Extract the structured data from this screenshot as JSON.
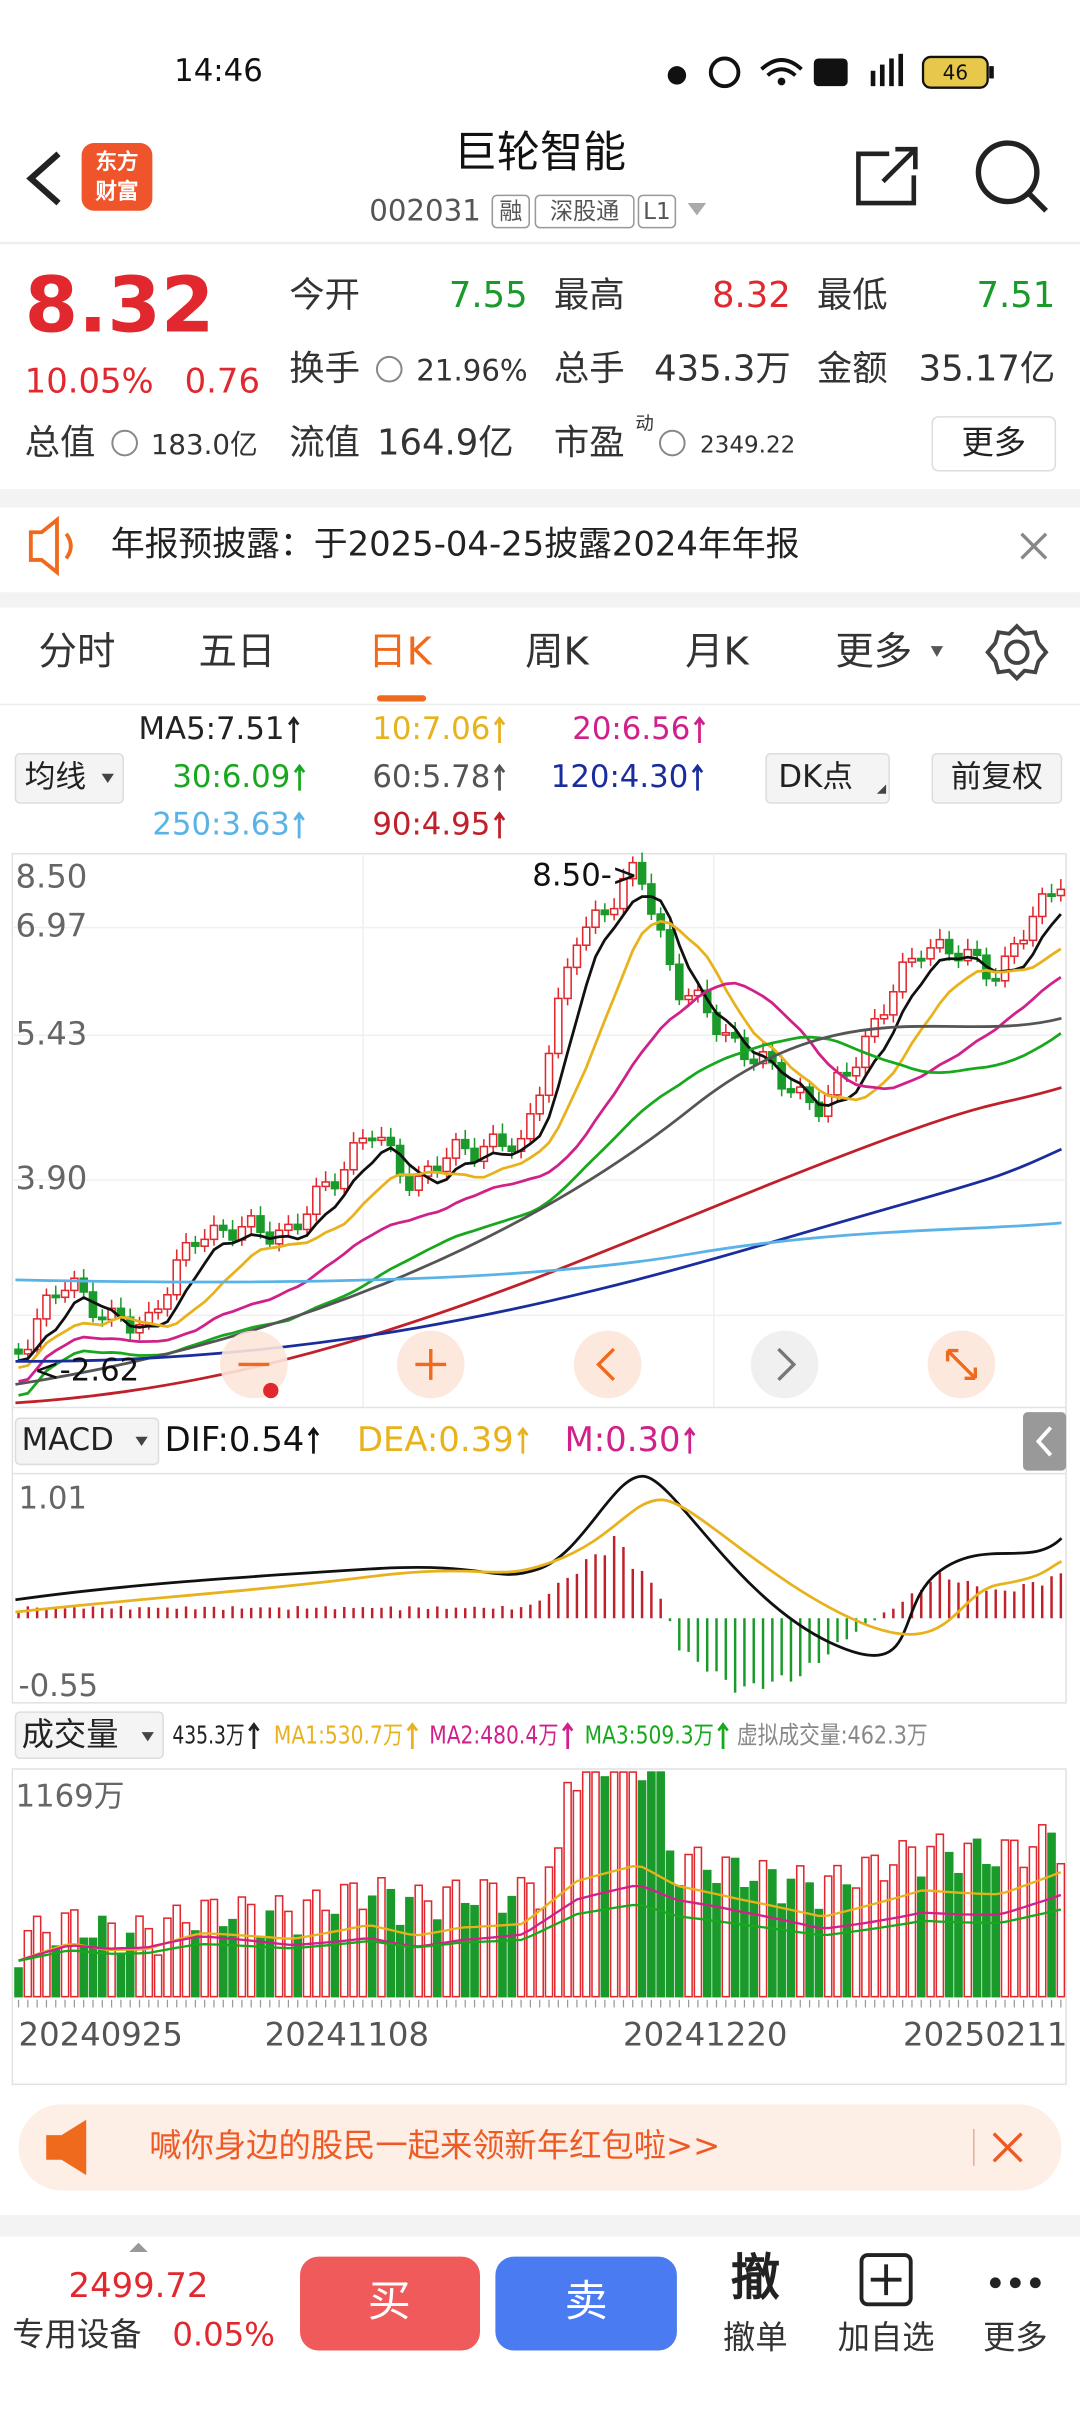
{
  "status_bar": {
    "time": "14:46",
    "battery": "46"
  },
  "header": {
    "logo": [
      "东方",
      "财富"
    ],
    "title": "巨轮智能",
    "code": "002031",
    "tags": [
      "融",
      "深股通",
      "L1"
    ]
  },
  "quote": {
    "price": "8.32",
    "change_pct": "10.05%",
    "change": "0.76",
    "open": {
      "label": "今开",
      "value": "7.55"
    },
    "high": {
      "label": "最高",
      "value": "8.32"
    },
    "low": {
      "label": "最低",
      "value": "7.51"
    },
    "turnover": {
      "label": "换手",
      "value": "21.96%"
    },
    "volume": {
      "label": "总手",
      "value": "435.3万"
    },
    "amount": {
      "label": "金额",
      "value": "35.17亿"
    },
    "market_cap": {
      "label": "总值",
      "value": "183.0亿"
    },
    "float_cap": {
      "label": "流值",
      "value": "164.9亿"
    },
    "pe": {
      "label": "市盈",
      "sup": "动",
      "value": "2349.22"
    },
    "more": "更多"
  },
  "notice": "年报预披露：于2025-04-25披露2024年年报",
  "tabs": [
    "分时",
    "五日",
    "日K",
    "周K",
    "月K",
    "更多"
  ],
  "kline": {
    "ma_selector": "均线",
    "dk_button": "DK点",
    "adjust_button": "前复权",
    "ma5": "MA5:7.51",
    "ma10": "10:7.06",
    "ma20": "20:6.56",
    "ma30": "30:6.09",
    "ma60": "60:5.78",
    "ma120": "120:4.30",
    "ma250": "250:3.63",
    "ma90": "90:4.95",
    "price_axis": [
      "8.50",
      "6.97",
      "5.43",
      "3.90"
    ],
    "high_marker": "8.50->",
    "low_marker": "<-2.62"
  },
  "macd": {
    "selector": "MACD",
    "dif": "DIF:0.54",
    "dea": "DEA:0.39",
    "m": "M:0.30",
    "axis_top": "1.01",
    "axis_bottom": "-0.55"
  },
  "volume": {
    "selector": "成交量",
    "current": "435.3万",
    "ma1": "MA1:530.7万",
    "ma2": "MA2:480.4万",
    "ma3": "MA3:509.3万",
    "virtual": "虚拟成交量:462.3万",
    "axis_max": "1169万"
  },
  "dates": [
    "20240925",
    "20241108",
    "20241220",
    "20250211"
  ],
  "banner": "喊你身边的股民一起来领新年红包啦>>",
  "bottom": {
    "index_value": "2499.72",
    "sector": "专用设备",
    "sector_change": "0.05%",
    "buy": "买",
    "sell": "卖",
    "cancel_icon": "撤",
    "cancel": "撤单",
    "watch": "加自选",
    "more": "更多"
  }
}
